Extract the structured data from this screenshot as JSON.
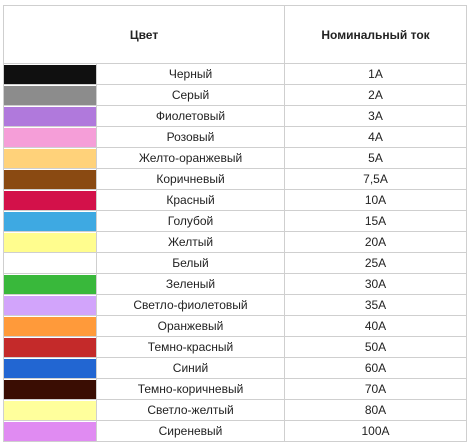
{
  "table": {
    "header_color": "Цвет",
    "header_current": "Номинальный ток",
    "rows": [
      {
        "color": "#101010",
        "name": "Черный",
        "current": "1А"
      },
      {
        "color": "#8c8c8c",
        "name": "Серый",
        "current": "2А"
      },
      {
        "color": "#b079dc",
        "name": "Фиолетовый",
        "current": "3А"
      },
      {
        "color": "#f59ed8",
        "name": "Розовый",
        "current": "4А"
      },
      {
        "color": "#ffd27a",
        "name": "Желто-оранжевый",
        "current": "5А"
      },
      {
        "color": "#8a4a12",
        "name": "Коричневый",
        "current": "7,5А"
      },
      {
        "color": "#d3114a",
        "name": "Красный",
        "current": "10А"
      },
      {
        "color": "#3ea9e2",
        "name": "Голубой",
        "current": "15А"
      },
      {
        "color": "#fffd8e",
        "name": "Желтый",
        "current": "20А"
      },
      {
        "color": "#ffffff",
        "name": "Белый",
        "current": "25А"
      },
      {
        "color": "#39b83b",
        "name": "Зеленый",
        "current": "30А"
      },
      {
        "color": "#d2a4fb",
        "name": "Светло-фиолетовый",
        "current": "35А"
      },
      {
        "color": "#ff9a3a",
        "name": "Оранжевый",
        "current": "40А"
      },
      {
        "color": "#c42a2a",
        "name": "Темно-красный",
        "current": "50А"
      },
      {
        "color": "#2266d2",
        "name": "Синий",
        "current": "60А"
      },
      {
        "color": "#3a0d03",
        "name": "Темно-коричневый",
        "current": "70А"
      },
      {
        "color": "#ffff9c",
        "name": "Светло-желтый",
        "current": "80А"
      },
      {
        "color": "#e08bf2",
        "name": "Сиреневый",
        "current": "100А"
      }
    ]
  }
}
